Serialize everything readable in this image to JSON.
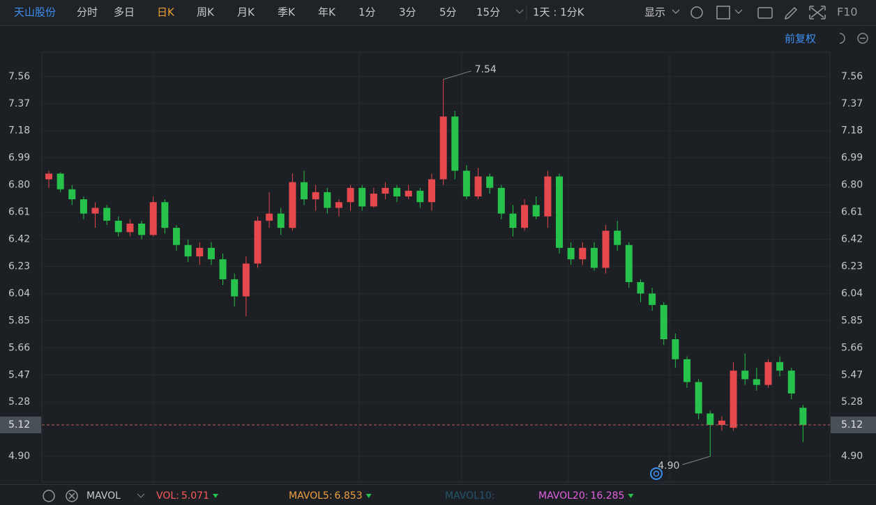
{
  "toolbar": {
    "stock": "天山股份",
    "tabs": [
      "分时",
      "多日",
      "日K",
      "周K",
      "月K",
      "季K",
      "年K",
      "1分",
      "3分",
      "5分",
      "15分"
    ],
    "active_tab": 2,
    "period": "1天 : 1分K",
    "display": "显示",
    "f10": "F10",
    "adjust": "前复权"
  },
  "chart_data": {
    "type": "candlestick",
    "open": [
      6.84,
      6.88,
      6.77,
      6.7,
      6.6,
      6.64,
      6.55,
      6.47,
      6.53,
      6.45,
      6.68,
      6.5,
      6.38,
      6.3,
      6.36,
      6.28,
      6.14,
      6.02,
      6.25,
      6.55,
      6.6,
      6.5,
      6.82,
      6.7,
      6.75,
      6.64,
      6.68,
      6.78,
      6.65,
      6.74,
      6.78,
      6.72,
      6.76,
      6.68,
      6.84,
      7.28,
      6.9,
      6.72,
      6.86,
      6.78,
      6.6,
      6.5,
      6.66,
      6.58,
      6.86,
      6.36,
      6.28,
      6.36,
      6.22,
      6.48,
      6.38,
      6.12,
      6.04,
      5.96,
      5.72,
      5.58,
      5.42,
      5.2,
      5.12,
      5.1,
      5.5,
      5.44,
      5.4,
      5.56,
      5.5,
      5.24
    ],
    "high": [
      6.9,
      6.89,
      6.8,
      6.72,
      6.68,
      6.66,
      6.58,
      6.56,
      6.55,
      6.72,
      6.7,
      6.52,
      6.42,
      6.4,
      6.4,
      6.32,
      6.18,
      6.3,
      6.58,
      6.75,
      6.64,
      6.88,
      6.9,
      6.8,
      6.78,
      6.7,
      6.8,
      6.8,
      6.78,
      6.82,
      6.8,
      6.8,
      6.78,
      6.88,
      7.54,
      7.32,
      6.94,
      6.92,
      6.88,
      6.8,
      6.66,
      6.7,
      6.72,
      6.9,
      6.88,
      6.4,
      6.4,
      6.4,
      6.52,
      6.55,
      6.4,
      6.14,
      6.08,
      5.98,
      5.76,
      5.6,
      5.44,
      5.22,
      5.18,
      5.56,
      5.62,
      5.52,
      5.58,
      5.6,
      5.52,
      5.26
    ],
    "low": [
      6.78,
      6.75,
      6.66,
      6.56,
      6.5,
      6.52,
      6.44,
      6.44,
      6.42,
      6.44,
      6.46,
      6.34,
      6.26,
      6.24,
      6.24,
      6.1,
      5.95,
      5.88,
      6.22,
      6.5,
      6.45,
      6.48,
      6.66,
      6.62,
      6.6,
      6.58,
      6.62,
      6.62,
      6.64,
      6.7,
      6.68,
      6.7,
      6.64,
      6.62,
      6.8,
      6.84,
      6.7,
      6.7,
      6.74,
      6.56,
      6.44,
      6.48,
      6.56,
      6.5,
      6.32,
      6.24,
      6.24,
      6.2,
      6.18,
      6.34,
      6.08,
      5.98,
      5.92,
      5.68,
      5.52,
      5.38,
      5.16,
      4.9,
      5.08,
      5.08,
      5.4,
      5.36,
      5.38,
      5.46,
      5.3,
      5.0
    ],
    "close": [
      6.88,
      6.77,
      6.7,
      6.6,
      6.64,
      6.55,
      6.47,
      6.53,
      6.45,
      6.68,
      6.5,
      6.38,
      6.3,
      6.36,
      6.28,
      6.14,
      6.02,
      6.25,
      6.55,
      6.6,
      6.5,
      6.82,
      6.7,
      6.75,
      6.64,
      6.68,
      6.78,
      6.65,
      6.74,
      6.78,
      6.72,
      6.76,
      6.68,
      6.84,
      7.28,
      6.9,
      6.72,
      6.86,
      6.78,
      6.6,
      6.5,
      6.66,
      6.58,
      6.86,
      6.36,
      6.28,
      6.36,
      6.22,
      6.48,
      6.38,
      6.12,
      6.04,
      5.96,
      5.72,
      5.58,
      5.42,
      5.2,
      5.12,
      5.15,
      5.5,
      5.44,
      5.4,
      5.56,
      5.5,
      5.34,
      5.12
    ],
    "up_color": "#e5484d",
    "down_color": "#27c24c",
    "ylim": [
      4.72,
      7.73
    ],
    "yticks": [
      {
        "value": 4.9,
        "label": "4.90"
      },
      5.28,
      5.47,
      5.66,
      5.85,
      6.04,
      6.23,
      6.42,
      6.61,
      {
        "value": 6.8,
        "label": "6.80"
      },
      6.99,
      7.18,
      7.37,
      7.56
    ],
    "current_price": 5.12,
    "annotations": [
      "7.54",
      "4.90"
    ]
  },
  "indicator_bar": {
    "name": "MAVOL",
    "items": [
      {
        "name": "VOL:",
        "value": "5.071",
        "color": "#ff5a5a"
      },
      {
        "name": "MAVOL5:",
        "value": "6.853",
        "color": "#f0a040"
      },
      {
        "name": "MAVOL10:",
        "color": "#23566e"
      },
      {
        "name": "MAVOL20:",
        "value": "16.285",
        "color": "#e060e0"
      }
    ]
  }
}
